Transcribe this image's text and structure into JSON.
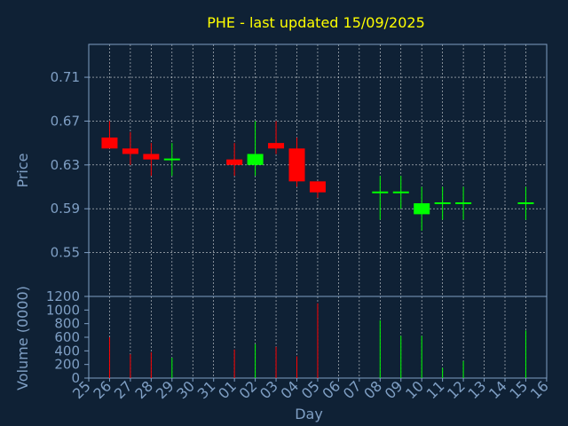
{
  "chart_data": [
    {
      "type": "candlestick",
      "title": "PHE - last updated 15/09/2025",
      "ylabel": "Price",
      "ylim": [
        0.51,
        0.74
      ],
      "yticks": [
        "0.71",
        "0.67",
        "0.63",
        "0.59",
        "0.55"
      ],
      "yticks_values": [
        0.71,
        0.67,
        0.63,
        0.59,
        0.55
      ],
      "grid": true,
      "colors": {
        "up": "#00ff00",
        "down": "#ff0000",
        "grid": "#ffffff",
        "background": "#0f2135",
        "axis": "#7f9fc4",
        "title": "#ffff00"
      },
      "categories": [
        "25",
        "26",
        "27",
        "28",
        "29",
        "30",
        "31",
        "01",
        "02",
        "03",
        "04",
        "05",
        "06",
        "07",
        "08",
        "09",
        "10",
        "11",
        "12",
        "13",
        "14",
        "15",
        "16"
      ],
      "candles": [
        {
          "day": "26",
          "open": 0.655,
          "close": 0.645,
          "high": 0.67,
          "low": 0.645
        },
        {
          "day": "27",
          "open": 0.645,
          "close": 0.64,
          "high": 0.66,
          "low": 0.63
        },
        {
          "day": "28",
          "open": 0.64,
          "close": 0.635,
          "high": 0.65,
          "low": 0.62
        },
        {
          "day": "29",
          "open": 0.635,
          "close": 0.635,
          "high": 0.65,
          "low": 0.62
        },
        {
          "day": "01",
          "open": 0.635,
          "close": 0.63,
          "high": 0.65,
          "low": 0.62
        },
        {
          "day": "02",
          "open": 0.63,
          "close": 0.64,
          "high": 0.67,
          "low": 0.62
        },
        {
          "day": "03",
          "open": 0.65,
          "close": 0.645,
          "high": 0.67,
          "low": 0.64
        },
        {
          "day": "04",
          "open": 0.645,
          "close": 0.615,
          "high": 0.655,
          "low": 0.61
        },
        {
          "day": "05",
          "open": 0.615,
          "close": 0.605,
          "high": 0.615,
          "low": 0.6
        },
        {
          "day": "08",
          "open": 0.605,
          "close": 0.605,
          "high": 0.62,
          "low": 0.58
        },
        {
          "day": "09",
          "open": 0.605,
          "close": 0.605,
          "high": 0.62,
          "low": 0.59
        },
        {
          "day": "10",
          "open": 0.585,
          "close": 0.595,
          "high": 0.61,
          "low": 0.57
        },
        {
          "day": "11",
          "open": 0.595,
          "close": 0.595,
          "high": 0.61,
          "low": 0.58
        },
        {
          "day": "12",
          "open": 0.595,
          "close": 0.595,
          "high": 0.61,
          "low": 0.58
        },
        {
          "day": "15",
          "open": 0.595,
          "close": 0.595,
          "high": 0.61,
          "low": 0.58
        }
      ]
    },
    {
      "type": "bar",
      "ylabel": "Volume (0000)",
      "xlabel": "Day",
      "ylim": [
        0,
        1200
      ],
      "yticks": [
        "1200",
        "1000",
        "800",
        "600",
        "400",
        "200",
        "0"
      ],
      "yticks_values": [
        1200,
        1000,
        800,
        600,
        400,
        200,
        0
      ],
      "categories": [
        "25",
        "26",
        "27",
        "28",
        "29",
        "30",
        "31",
        "01",
        "02",
        "03",
        "04",
        "05",
        "06",
        "07",
        "08",
        "09",
        "10",
        "11",
        "12",
        "13",
        "14",
        "15",
        "16"
      ],
      "bars": [
        {
          "day": "26",
          "value": 600,
          "color": "down"
        },
        {
          "day": "27",
          "value": 350,
          "color": "down"
        },
        {
          "day": "28",
          "value": 380,
          "color": "down"
        },
        {
          "day": "29",
          "value": 300,
          "color": "up"
        },
        {
          "day": "01",
          "value": 420,
          "color": "down"
        },
        {
          "day": "02",
          "value": 500,
          "color": "up"
        },
        {
          "day": "03",
          "value": 460,
          "color": "down"
        },
        {
          "day": "04",
          "value": 320,
          "color": "down"
        },
        {
          "day": "05",
          "value": 1100,
          "color": "down"
        },
        {
          "day": "08",
          "value": 850,
          "color": "up"
        },
        {
          "day": "09",
          "value": 620,
          "color": "up"
        },
        {
          "day": "10",
          "value": 620,
          "color": "up"
        },
        {
          "day": "11",
          "value": 150,
          "color": "up"
        },
        {
          "day": "12",
          "value": 250,
          "color": "up"
        },
        {
          "day": "15",
          "value": 700,
          "color": "up"
        }
      ]
    }
  ]
}
